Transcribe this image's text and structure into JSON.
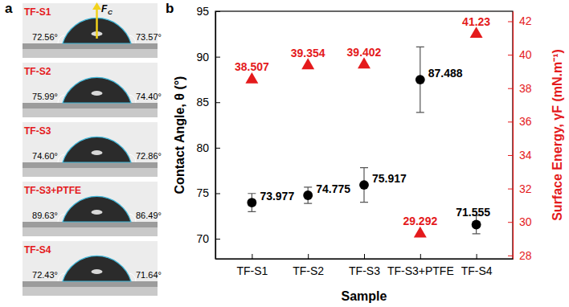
{
  "panel_a": {
    "label": "a",
    "force_label": "F",
    "force_subscript": "C",
    "samples": [
      {
        "name": "TF-S1",
        "left_angle": "72.56°",
        "right_angle": "73.57°"
      },
      {
        "name": "TF-S2",
        "left_angle": "75.99°",
        "right_angle": "74.40°"
      },
      {
        "name": "TF-S3",
        "left_angle": "74.60°",
        "right_angle": "72.86°"
      },
      {
        "name": "TF-S3+PTFE",
        "left_angle": "89.63°",
        "right_angle": "86.49°"
      },
      {
        "name": "TF-S4",
        "left_angle": "72.43°",
        "right_angle": "71.64°"
      }
    ]
  },
  "chart_data": {
    "type": "scatter",
    "title": "b",
    "xlabel": "Sample",
    "ylabel": "Contact Angle, θ (°)",
    "y2label": "Surface Energy, γF (mN.m⁻¹)",
    "categories": [
      "TF-S1",
      "TF-S2",
      "TF-S3",
      "TF-S3+PTFE",
      "TF-S4"
    ],
    "series": [
      {
        "name": "Contact Angle",
        "color": "#000000",
        "marker": "circle",
        "values": [
          73.977,
          74.775,
          75.917,
          87.488,
          71.555
        ],
        "errors": [
          1.0,
          0.9,
          1.9,
          3.6,
          1.0
        ]
      },
      {
        "name": "Surface Energy",
        "color": "#e41a1c",
        "marker": "triangle",
        "axis": "y2",
        "values": [
          38.507,
          39.354,
          39.402,
          29.292,
          41.23
        ]
      }
    ],
    "ylim": [
      67.8,
      95
    ],
    "yticks": [
      70,
      75,
      80,
      85,
      90,
      95
    ],
    "y2lim": [
      27.8,
      42.6
    ],
    "y2ticks": [
      28,
      30,
      32,
      34,
      36,
      38,
      40,
      42
    ],
    "data_labels": true,
    "grid": false
  }
}
